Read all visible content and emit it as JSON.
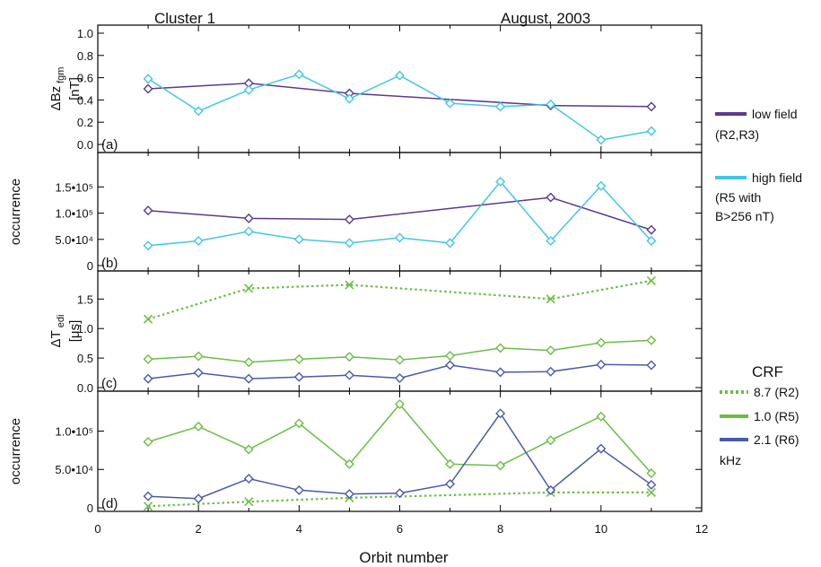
{
  "header": {
    "left": "Cluster 1",
    "right": "August, 2003"
  },
  "xaxis": {
    "label": "Orbit  number",
    "ticks": [
      "0",
      "2",
      "4",
      "6",
      "8",
      "10",
      "12"
    ],
    "range": [
      0,
      12
    ]
  },
  "colors": {
    "low": "#5b3a8c",
    "high": "#43c6e6",
    "green": "#6cbd45",
    "blue": "#4a5aa8"
  },
  "legend": {
    "low_label1": "low field",
    "low_label2": "(R2,R3)",
    "high_label1": "high field",
    "high_label2": "(R5 with",
    "high_label3": "B>256 nT)",
    "crf_title": "CRF",
    "crf_r2": "8.7 (R2)",
    "crf_r5": "1.0 (R5)",
    "crf_r6": "2.1 (R6)",
    "crf_unit": "kHz"
  },
  "chart_data": [
    {
      "type": "line",
      "panel_label": "(a)",
      "ylabel_main": "ΔBz",
      "ylabel_sub": "fgm",
      "ylabel2": "[nT]",
      "ylim": [
        0,
        1.0
      ],
      "yticks": [
        "0.0",
        "0.2",
        "0.4",
        "0.6",
        "0.8",
        "1.0"
      ],
      "series": [
        {
          "key": "low",
          "marker": "diamond",
          "dotted": false,
          "x": [
            1,
            3,
            5,
            9,
            11
          ],
          "values": [
            0.5,
            0.55,
            0.46,
            0.35,
            0.34
          ]
        },
        {
          "key": "high",
          "marker": "diamond",
          "dotted": false,
          "x": [
            1,
            2,
            3,
            4,
            5,
            6,
            7,
            8,
            9,
            10,
            11
          ],
          "values": [
            0.59,
            0.3,
            0.49,
            0.63,
            0.41,
            0.62,
            0.37,
            0.34,
            0.36,
            0.04,
            0.12
          ]
        }
      ]
    },
    {
      "type": "line",
      "panel_label": "(b)",
      "ylabel_main": "occurrence",
      "ylim": [
        0,
        190000
      ],
      "yticks": [
        "0",
        "5.0•10⁴",
        "1.0•10⁵",
        "1.5•10⁵"
      ],
      "series": [
        {
          "key": "low",
          "marker": "diamond",
          "dotted": false,
          "x": [
            1,
            3,
            5,
            9,
            11
          ],
          "values": [
            105000,
            90000,
            88000,
            130000,
            68000
          ]
        },
        {
          "key": "high",
          "marker": "diamond",
          "dotted": false,
          "x": [
            1,
            2,
            3,
            4,
            5,
            6,
            7,
            8,
            9,
            10,
            11
          ],
          "values": [
            38000,
            47000,
            65000,
            50000,
            43000,
            53000,
            43000,
            160000,
            47000,
            152000,
            47000
          ]
        }
      ]
    },
    {
      "type": "line",
      "panel_label": "(c)",
      "ylabel_main": "ΔT",
      "ylabel_sub": "edi",
      "ylabel2": "[μs]",
      "ylim": [
        0,
        1.9
      ],
      "yticks": [
        "0.0",
        "0.5",
        "1.0",
        "1.5"
      ],
      "series": [
        {
          "key": "green",
          "marker": "x",
          "dotted": true,
          "x": [
            1,
            3,
            5,
            9,
            11
          ],
          "values": [
            1.16,
            1.68,
            1.74,
            1.5,
            1.81
          ]
        },
        {
          "key": "green",
          "marker": "diamond",
          "dotted": false,
          "x": [
            1,
            2,
            3,
            4,
            5,
            6,
            7,
            8,
            9,
            10,
            11
          ],
          "values": [
            0.48,
            0.53,
            0.43,
            0.48,
            0.52,
            0.47,
            0.54,
            0.67,
            0.63,
            0.76,
            0.8
          ]
        },
        {
          "key": "blue",
          "marker": "diamond",
          "dotted": false,
          "x": [
            1,
            2,
            3,
            4,
            5,
            6,
            7,
            8,
            9,
            10,
            11
          ],
          "values": [
            0.15,
            0.25,
            0.15,
            0.18,
            0.21,
            0.16,
            0.38,
            0.26,
            0.27,
            0.39,
            0.38
          ]
        }
      ]
    },
    {
      "type": "line",
      "panel_label": "(d)",
      "ylabel_main": "occurrence",
      "ylim": [
        0,
        145000
      ],
      "yticks": [
        "0",
        "5.0•10⁴",
        "1.0•10⁵"
      ],
      "series": [
        {
          "key": "green",
          "marker": "x",
          "dotted": true,
          "x": [
            1,
            3,
            5,
            9,
            11
          ],
          "values": [
            2000,
            8000,
            13000,
            20000,
            20000
          ]
        },
        {
          "key": "green",
          "marker": "diamond",
          "dotted": false,
          "x": [
            1,
            2,
            3,
            4,
            5,
            6,
            7,
            8,
            9,
            10,
            11
          ],
          "values": [
            86000,
            106000,
            76000,
            110000,
            57000,
            135000,
            57000,
            55000,
            88000,
            119000,
            45000
          ]
        },
        {
          "key": "blue",
          "marker": "diamond",
          "dotted": false,
          "x": [
            1,
            2,
            3,
            4,
            5,
            6,
            7,
            8,
            9,
            10,
            11
          ],
          "values": [
            15000,
            12000,
            38000,
            23000,
            18000,
            19000,
            31000,
            123000,
            23000,
            77000,
            30000
          ]
        }
      ]
    }
  ]
}
